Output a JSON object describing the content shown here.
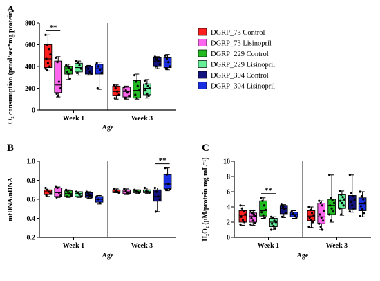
{
  "legend": [
    {
      "label": "DGRP_73 Control",
      "color": "#ff1f1f"
    },
    {
      "label": "DGRP_73 Lisinopril",
      "color": "#ff66ee"
    },
    {
      "label": "DGRP_229 Control",
      "color": "#22bb22"
    },
    {
      "label": "DGRP_229 Lisinopril",
      "color": "#66ee99"
    },
    {
      "label": "DGRP_304 Control",
      "color": "#131380"
    },
    {
      "label": "DGRP_304 Lisinopril",
      "color": "#1a2fe0"
    }
  ],
  "chart_data": [
    {
      "panel": "A",
      "type": "box",
      "ylabel": "O₂ consumption (pmol/sec*mg protein)",
      "xlabel": "Age",
      "categories": [
        "Week 1",
        "Week 3"
      ],
      "ylim": [
        0,
        800
      ],
      "yticks": [
        "0",
        "200",
        "400",
        "600",
        "800"
      ],
      "significance": [
        {
          "group": 0,
          "from": 0,
          "to": 1,
          "label": "**"
        }
      ],
      "groups": [
        {
          "name": "Week 1",
          "boxes": [
            {
              "series": 0,
              "min": 360,
              "q1": 390,
              "median": 470,
              "q3": 600,
              "max": 690,
              "points": [
                690,
                600,
                560,
                510,
                470,
                430,
                400,
                380,
                365
              ]
            },
            {
              "series": 1,
              "min": 120,
              "q1": 160,
              "median": 230,
              "q3": 450,
              "max": 490,
              "points": [
                480,
                440,
                260,
                200,
                150,
                130
              ]
            },
            {
              "series": 2,
              "min": 280,
              "q1": 330,
              "median": 380,
              "q3": 400,
              "max": 420,
              "points": [
                410,
                400,
                390,
                370,
                350,
                330,
                290
              ]
            },
            {
              "series": 3,
              "min": 320,
              "q1": 350,
              "median": 390,
              "q3": 430,
              "max": 450,
              "points": [
                450,
                430,
                410,
                380,
                340
              ]
            },
            {
              "series": 4,
              "min": 320,
              "q1": 330,
              "median": 360,
              "q3": 400,
              "max": 410,
              "points": [
                400,
                380,
                350,
                330
              ]
            },
            {
              "series": 5,
              "min": 190,
              "q1": 330,
              "median": 380,
              "q3": 420,
              "max": 440,
              "points": [
                430,
                400,
                370,
                340,
                200
              ]
            }
          ]
        },
        {
          "name": "Week 3",
          "boxes": [
            {
              "series": 0,
              "min": 100,
              "q1": 135,
              "median": 170,
              "q3": 220,
              "max": 230,
              "points": [
                230,
                200,
                170,
                140,
                110
              ]
            },
            {
              "series": 1,
              "min": 100,
              "q1": 120,
              "median": 170,
              "q3": 210,
              "max": 220,
              "points": [
                210,
                180,
                160,
                130,
                110
              ]
            },
            {
              "series": 2,
              "min": 100,
              "q1": 110,
              "median": 180,
              "q3": 270,
              "max": 330,
              "points": [
                320,
                260,
                220,
                180,
                140,
                110
              ]
            },
            {
              "series": 3,
              "min": 110,
              "q1": 140,
              "median": 200,
              "q3": 240,
              "max": 280,
              "points": [
                270,
                240,
                220,
                200,
                180,
                150,
                130
              ]
            },
            {
              "series": 4,
              "min": 380,
              "q1": 400,
              "median": 450,
              "q3": 480,
              "max": 490,
              "points": [
                490,
                470,
                450,
                420,
                400
              ]
            },
            {
              "series": 5,
              "min": 370,
              "q1": 390,
              "median": 440,
              "q3": 480,
              "max": 510,
              "points": [
                500,
                470,
                440,
                400,
                380
              ]
            }
          ]
        }
      ]
    },
    {
      "panel": "B",
      "type": "box",
      "ylabel": "mtDNA/nDNA",
      "xlabel": "Age",
      "categories": [
        "Week 1",
        "Week 3"
      ],
      "ylim": [
        0.2,
        1.0
      ],
      "yticks": [
        "0.2",
        "0.4",
        "0.6",
        "0.8",
        "1.0"
      ],
      "significance": [
        {
          "group": 1,
          "from": 4,
          "to": 5,
          "label": "**"
        }
      ],
      "groups": [
        {
          "name": "Week 1",
          "boxes": [
            {
              "series": 0,
              "min": 0.63,
              "q1": 0.65,
              "median": 0.68,
              "q3": 0.7,
              "max": 0.72,
              "points": [
                0.72,
                0.7,
                0.68,
                0.66,
                0.64
              ]
            },
            {
              "series": 1,
              "min": 0.62,
              "q1": 0.63,
              "median": 0.67,
              "q3": 0.72,
              "max": 0.73,
              "points": [
                0.73,
                0.72,
                0.67,
                0.64,
                0.62
              ]
            },
            {
              "series": 2,
              "min": 0.62,
              "q1": 0.63,
              "median": 0.66,
              "q3": 0.69,
              "max": 0.7,
              "points": [
                0.7,
                0.68,
                0.66,
                0.64,
                0.63
              ]
            },
            {
              "series": 3,
              "min": 0.62,
              "q1": 0.63,
              "median": 0.66,
              "q3": 0.68,
              "max": 0.68,
              "points": [
                0.68,
                0.67,
                0.65,
                0.63
              ]
            },
            {
              "series": 4,
              "min": 0.61,
              "q1": 0.62,
              "median": 0.64,
              "q3": 0.67,
              "max": 0.68,
              "points": [
                0.68,
                0.66,
                0.64,
                0.62
              ]
            },
            {
              "series": 5,
              "min": 0.55,
              "q1": 0.57,
              "median": 0.6,
              "q3": 0.63,
              "max": 0.64,
              "points": [
                0.63,
                0.6,
                0.56
              ]
            }
          ]
        },
        {
          "name": "Week 3",
          "boxes": [
            {
              "series": 0,
              "min": 0.67,
              "q1": 0.67,
              "median": 0.68,
              "q3": 0.7,
              "max": 0.71,
              "points": [
                0.71,
                0.69,
                0.68,
                0.67
              ]
            },
            {
              "series": 1,
              "min": 0.65,
              "q1": 0.66,
              "median": 0.68,
              "q3": 0.7,
              "max": 0.71,
              "points": [
                0.71,
                0.69,
                0.67,
                0.66
              ]
            },
            {
              "series": 2,
              "min": 0.66,
              "q1": 0.67,
              "median": 0.68,
              "q3": 0.7,
              "max": 0.7,
              "points": [
                0.7,
                0.69,
                0.68,
                0.67
              ]
            },
            {
              "series": 3,
              "min": 0.66,
              "q1": 0.67,
              "median": 0.68,
              "q3": 0.7,
              "max": 0.72,
              "points": [
                0.72,
                0.69,
                0.68,
                0.67
              ]
            },
            {
              "series": 4,
              "min": 0.47,
              "q1": 0.58,
              "median": 0.63,
              "q3": 0.7,
              "max": 0.72,
              "points": [
                0.72,
                0.68,
                0.63,
                0.6,
                0.47
              ]
            },
            {
              "series": 5,
              "min": 0.69,
              "q1": 0.71,
              "median": 0.76,
              "q3": 0.86,
              "max": 0.93,
              "points": [
                0.93,
                0.86,
                0.76,
                0.71,
                0.7
              ]
            }
          ]
        }
      ]
    },
    {
      "panel": "C",
      "type": "box",
      "ylabel": "H₂O₂ (µM/protein mg mL⁻¹)",
      "xlabel": "Age",
      "categories": [
        "Week 1",
        "Week 3"
      ],
      "ylim": [
        0,
        10
      ],
      "yticks": [
        "0",
        "2",
        "4",
        "6",
        "8",
        "10"
      ],
      "significance": [
        {
          "group": 0,
          "from": 2,
          "to": 3,
          "label": "**"
        }
      ],
      "groups": [
        {
          "name": "Week 1",
          "boxes": [
            {
              "series": 0,
              "min": 1.6,
              "q1": 2.0,
              "median": 2.9,
              "q3": 3.5,
              "max": 4.2,
              "points": [
                4.2,
                3.8,
                3.4,
                3.0,
                2.7,
                2.3,
                2.0,
                1.7
              ]
            },
            {
              "series": 1,
              "min": 1.6,
              "q1": 2.0,
              "median": 2.8,
              "q3": 3.2,
              "max": 3.5,
              "points": [
                3.5,
                3.2,
                3.0,
                2.8,
                2.5,
                2.2,
                1.9,
                1.7
              ]
            },
            {
              "series": 2,
              "min": 2.5,
              "q1": 2.8,
              "median": 3.5,
              "q3": 4.8,
              "max": 5.2,
              "points": [
                5.2,
                4.8,
                4.2,
                3.6,
                3.3,
                2.9,
                2.6
              ]
            },
            {
              "series": 3,
              "min": 1.0,
              "q1": 1.4,
              "median": 2.0,
              "q3": 2.5,
              "max": 2.7,
              "points": [
                2.7,
                2.5,
                2.2,
                2.0,
                1.8,
                1.5,
                1.2,
                1.0
              ]
            },
            {
              "series": 4,
              "min": 2.6,
              "q1": 3.1,
              "median": 3.8,
              "q3": 4.2,
              "max": 4.3,
              "points": [
                4.3,
                4.0,
                3.7,
                3.2,
                2.7
              ]
            },
            {
              "series": 5,
              "min": 2.5,
              "q1": 2.7,
              "median": 3.0,
              "q3": 3.3,
              "max": 3.5,
              "points": [
                3.4,
                3.1,
                2.8,
                2.6
              ]
            }
          ]
        },
        {
          "name": "Week 3",
          "boxes": [
            {
              "series": 0,
              "min": 1.3,
              "q1": 2.2,
              "median": 2.8,
              "q3": 3.5,
              "max": 4.0,
              "points": [
                4.0,
                3.6,
                3.2,
                2.9,
                2.6,
                2.3,
                2.0,
                1.4
              ]
            },
            {
              "series": 1,
              "min": 1.0,
              "q1": 1.8,
              "median": 2.7,
              "q3": 4.5,
              "max": 4.8,
              "points": [
                4.8,
                4.5,
                4.2,
                3.5,
                3.0,
                2.6,
                2.2,
                1.8,
                1.4,
                1.0
              ]
            },
            {
              "series": 2,
              "min": 2.0,
              "q1": 3.0,
              "median": 4.2,
              "q3": 5.0,
              "max": 8.2,
              "points": [
                8.2,
                5.2,
                4.9,
                4.5,
                4.2,
                3.8,
                3.4,
                3.0,
                2.2
              ]
            },
            {
              "series": 3,
              "min": 2.9,
              "q1": 3.8,
              "median": 4.8,
              "q3": 5.6,
              "max": 6.1,
              "points": [
                6.1,
                5.6,
                5.3,
                5.0,
                4.8,
                4.5,
                4.2,
                3.8,
                3.0
              ]
            },
            {
              "series": 4,
              "min": 3.3,
              "q1": 3.7,
              "median": 4.8,
              "q3": 5.5,
              "max": 8.2,
              "points": [
                8.2,
                5.8,
                5.4,
                5.0,
                4.6,
                4.2,
                3.8,
                3.4
              ]
            },
            {
              "series": 5,
              "min": 2.7,
              "q1": 3.5,
              "median": 4.4,
              "q3": 5.2,
              "max": 6.0,
              "points": [
                6.0,
                5.4,
                5.0,
                4.5,
                4.1,
                3.7,
                3.2,
                2.8
              ]
            }
          ]
        }
      ]
    }
  ]
}
